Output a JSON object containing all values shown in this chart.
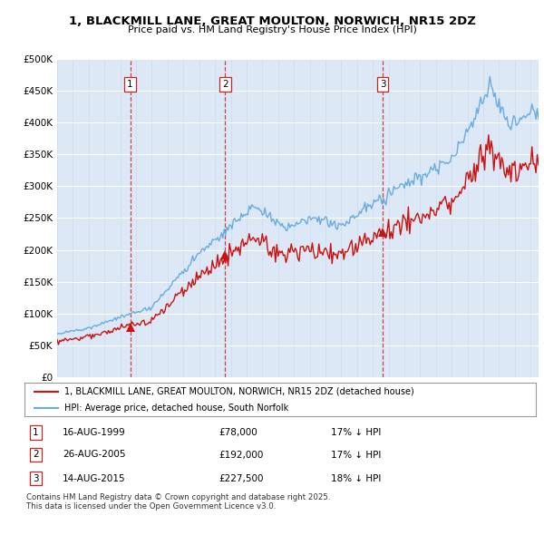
{
  "title": "1, BLACKMILL LANE, GREAT MOULTON, NORWICH, NR15 2DZ",
  "subtitle": "Price paid vs. HM Land Registry's House Price Index (HPI)",
  "fig_bg_color": "#ffffff",
  "plot_bg_color": "#dce8f5",
  "ylim": [
    0,
    500000
  ],
  "yticks": [
    0,
    50000,
    100000,
    150000,
    200000,
    250000,
    300000,
    350000,
    400000,
    450000,
    500000
  ],
  "xlim_start": 1995.0,
  "xlim_end": 2025.5,
  "legend_entries": [
    "1, BLACKMILL LANE, GREAT MOULTON, NORWICH, NR15 2DZ (detached house)",
    "HPI: Average price, detached house, South Norfolk"
  ],
  "sale_points": [
    {
      "year": 1999.625,
      "price": 78000,
      "label": "1"
    },
    {
      "year": 2005.65,
      "price": 192000,
      "label": "2"
    },
    {
      "year": 2015.62,
      "price": 227500,
      "label": "3"
    }
  ],
  "table_rows": [
    {
      "num": "1",
      "date": "16-AUG-1999",
      "price": "£78,000",
      "hpi": "17% ↓ HPI"
    },
    {
      "num": "2",
      "date": "26-AUG-2005",
      "price": "£192,000",
      "hpi": "17% ↓ HPI"
    },
    {
      "num": "3",
      "date": "14-AUG-2015",
      "price": "£227,500",
      "hpi": "18% ↓ HPI"
    }
  ],
  "footer": "Contains HM Land Registry data © Crown copyright and database right 2025.\nThis data is licensed under the Open Government Licence v3.0.",
  "hpi_color": "#6aace0",
  "price_color": "#cc1111",
  "vline_color": "#cc2222",
  "marker_color": "#cc1111"
}
